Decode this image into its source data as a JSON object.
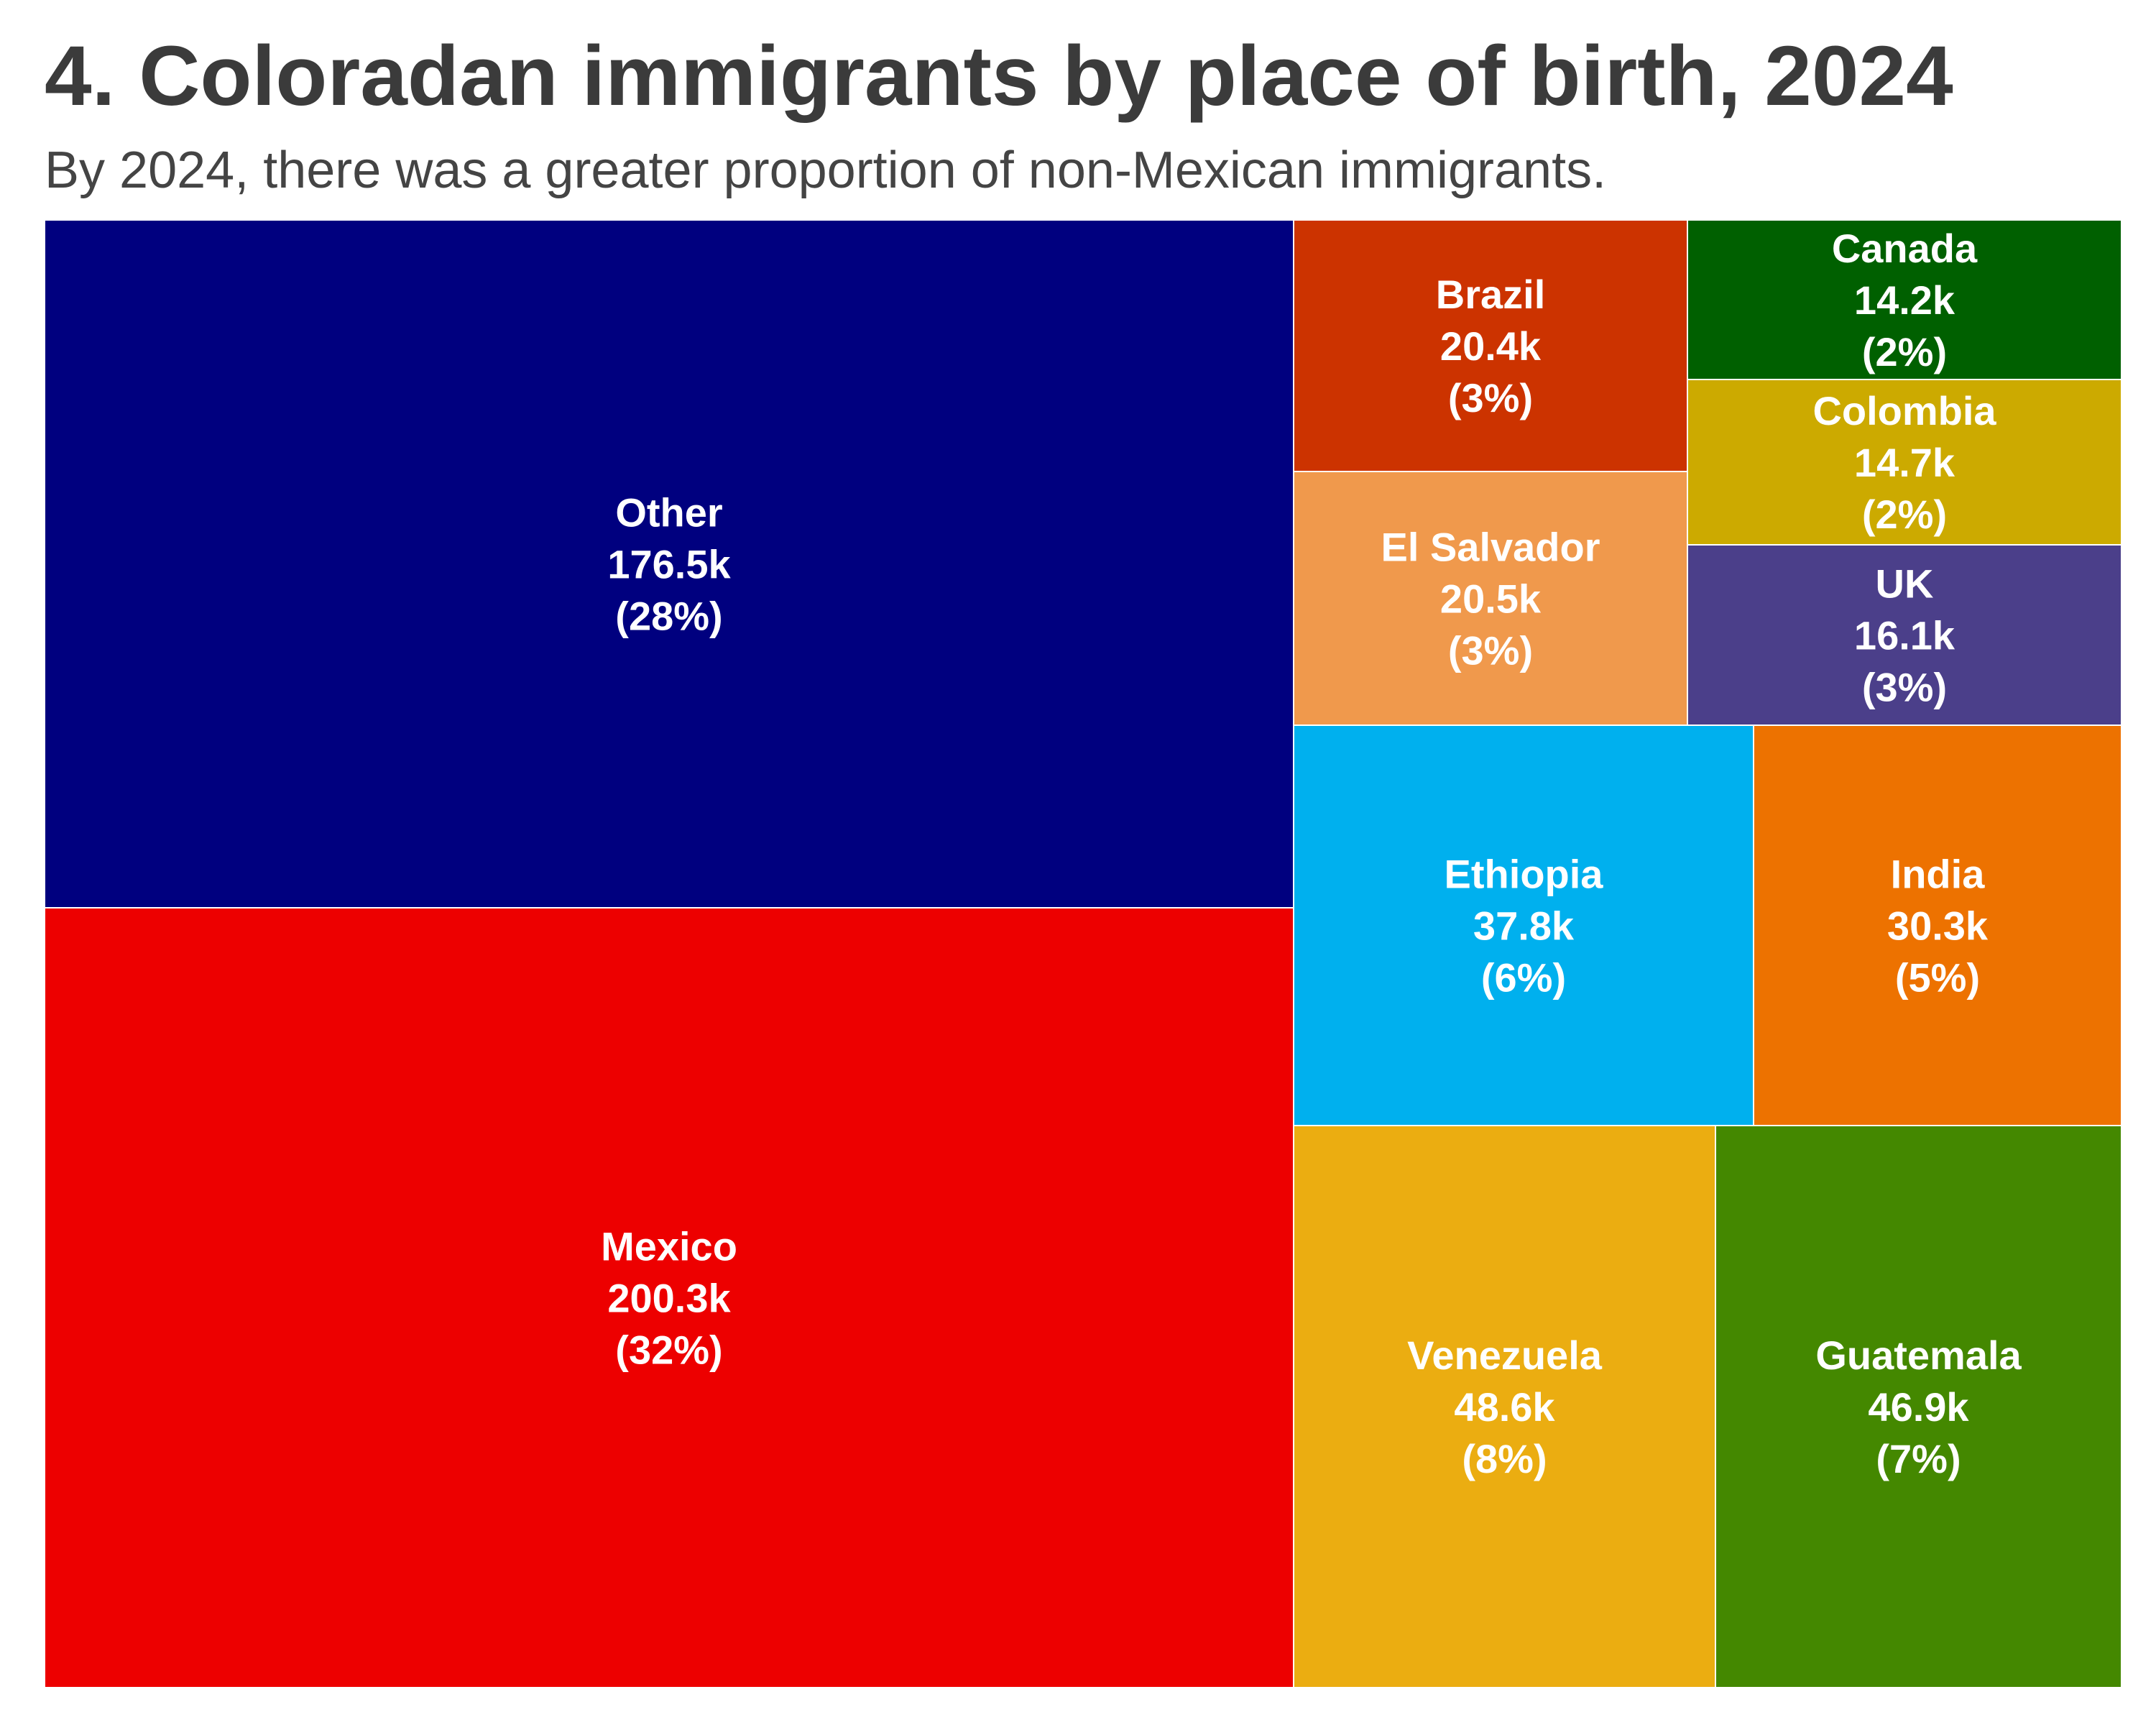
{
  "title": "4. Coloradan immigrants by place of birth, 2024",
  "subtitle": "By 2024, there was a greater proportion of non-Mexican immigrants.",
  "chart_data": {
    "type": "treemap",
    "title": "4. Coloradan immigrants by place of birth, 2024",
    "subtitle": "By 2024, there was a greater proportion of non-Mexican immigrants.",
    "unit": "k",
    "items": [
      {
        "name": "Other",
        "value": 176.5,
        "value_label": "176.5k",
        "share_label": "(28%)",
        "color": "#00007f"
      },
      {
        "name": "Mexico",
        "value": 200.3,
        "value_label": "200.3k",
        "share_label": "(32%)",
        "color": "#ed0000"
      },
      {
        "name": "Brazil",
        "value": 20.4,
        "value_label": "20.4k",
        "share_label": "(3%)",
        "color": "#cc3300"
      },
      {
        "name": "El Salvador",
        "value": 20.5,
        "value_label": "20.5k",
        "share_label": "(3%)",
        "color": "#f0994c"
      },
      {
        "name": "Canada",
        "value": 14.2,
        "value_label": "14.2k",
        "share_label": "(2%)",
        "color": "#006000"
      },
      {
        "name": "Colombia",
        "value": 14.7,
        "value_label": "14.7k",
        "share_label": "(2%)",
        "color": "#ccaa00"
      },
      {
        "name": "UK",
        "value": 16.1,
        "value_label": "16.1k",
        "share_label": "(3%)",
        "color": "#4b3f8a"
      },
      {
        "name": "Ethiopia",
        "value": 37.8,
        "value_label": "37.8k",
        "share_label": "(6%)",
        "color": "#00b0ee"
      },
      {
        "name": "India",
        "value": 30.3,
        "value_label": "30.3k",
        "share_label": "(5%)",
        "color": "#ed7200"
      },
      {
        "name": "Venezuela",
        "value": 48.6,
        "value_label": "48.6k",
        "share_label": "(8%)",
        "color": "#ebad11"
      },
      {
        "name": "Guatemala",
        "value": 46.9,
        "value_label": "46.9k",
        "share_label": "(7%)",
        "color": "#448800"
      }
    ]
  }
}
